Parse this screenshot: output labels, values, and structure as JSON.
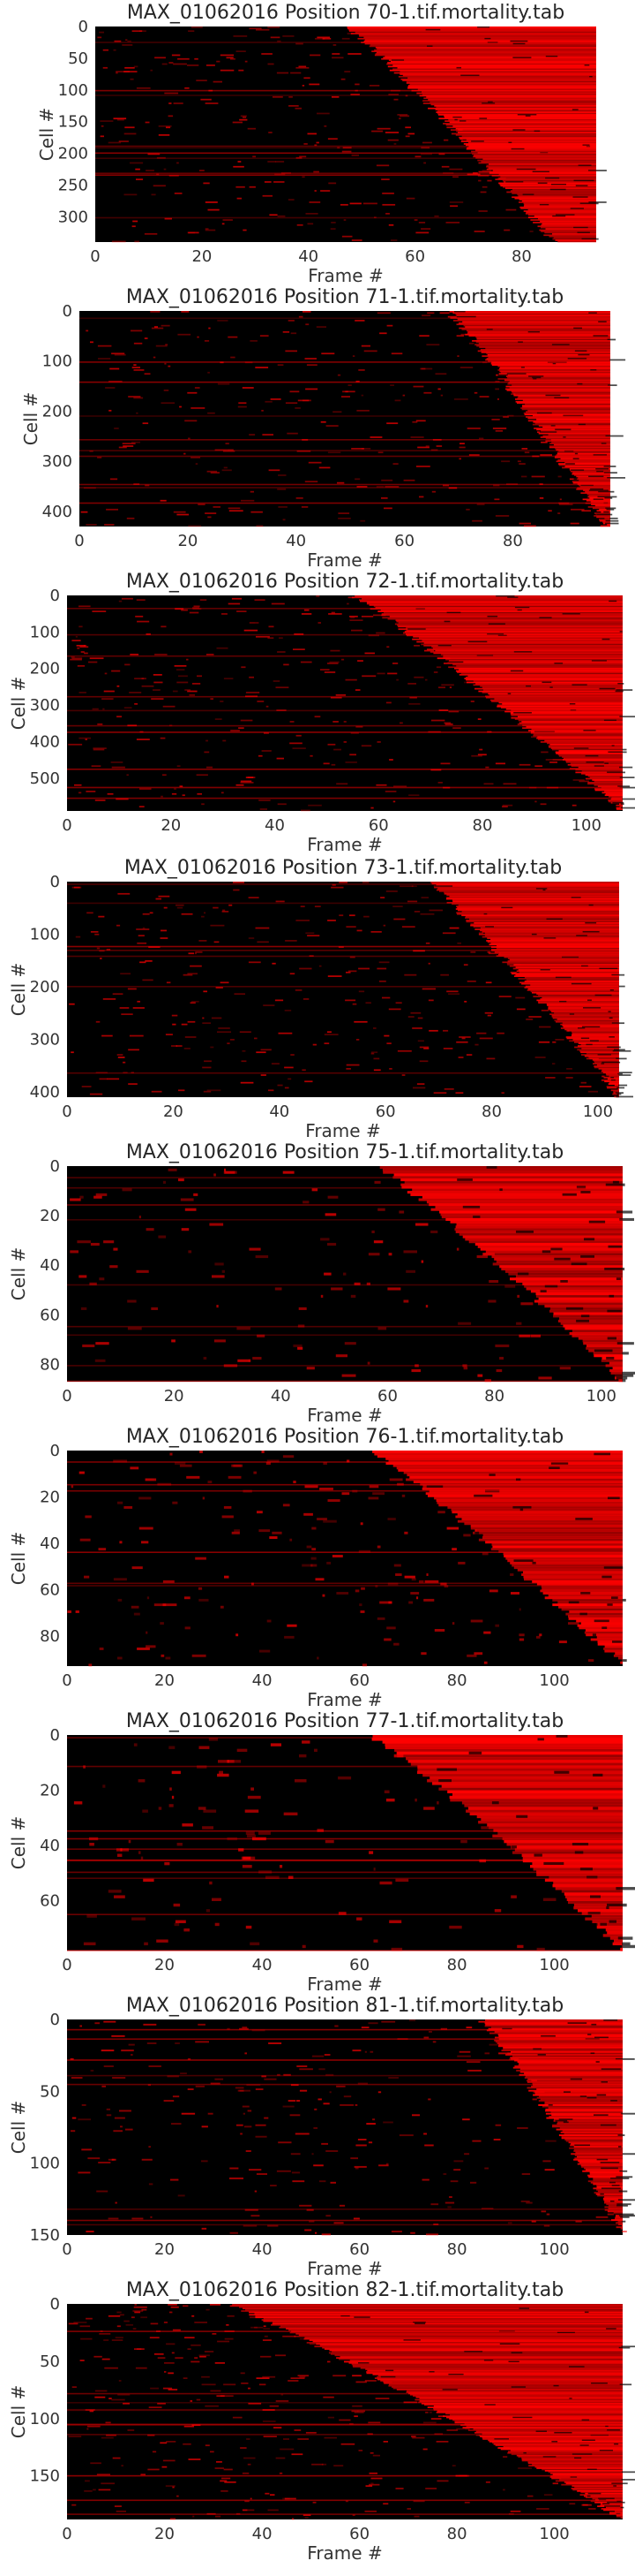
{
  "figure": {
    "background": "#ffffff",
    "cell_colormap": {
      "low": "#000000",
      "high": "#ff0000"
    }
  },
  "chart_data": [
    {
      "type": "heatmap",
      "title": "MAX_01062016 Position 70-1.tif.mortality.tab",
      "xlabel": "Frame #",
      "ylabel": "Cell #",
      "xlim": [
        0,
        94
      ],
      "ylim": [
        0,
        340
      ],
      "xticks": [
        0,
        20,
        40,
        60,
        80
      ],
      "yticks": [
        0,
        50,
        100,
        150,
        200,
        250,
        300
      ],
      "death_frame_range": [
        47,
        86
      ],
      "n_cells": 340,
      "n_frames": 94
    },
    {
      "type": "heatmap",
      "title": "MAX_01062016 Position 71-1.tif.mortality.tab",
      "xlabel": "Frame #",
      "ylabel": "Cell #",
      "xlim": [
        0,
        98
      ],
      "ylim": [
        0,
        430
      ],
      "xticks": [
        0,
        20,
        40,
        60,
        80
      ],
      "yticks": [
        0,
        100,
        200,
        300,
        400
      ],
      "death_frame_range": [
        68,
        97
      ],
      "n_cells": 430,
      "n_frames": 98
    },
    {
      "type": "heatmap",
      "title": "MAX_01062016 Position 72-1.tif.mortality.tab",
      "xlabel": "Frame #",
      "ylabel": "Cell #",
      "xlim": [
        0,
        107
      ],
      "ylim": [
        0,
        590
      ],
      "xticks": [
        0,
        20,
        40,
        60,
        80,
        100
      ],
      "yticks": [
        0,
        100,
        200,
        300,
        400,
        500
      ],
      "death_frame_range": [
        55,
        107
      ],
      "n_cells": 590,
      "n_frames": 107
    },
    {
      "type": "heatmap",
      "title": "MAX_01062016 Position 73-1.tif.mortality.tab",
      "xlabel": "Frame #",
      "ylabel": "Cell #",
      "xlim": [
        0,
        104
      ],
      "ylim": [
        0,
        410
      ],
      "xticks": [
        0,
        20,
        40,
        60,
        80,
        100
      ],
      "yticks": [
        0,
        100,
        200,
        300,
        400
      ],
      "death_frame_range": [
        68,
        104
      ],
      "n_cells": 410,
      "n_frames": 104
    },
    {
      "type": "heatmap",
      "title": "MAX_01062016 Position 75-1.tif.mortality.tab",
      "xlabel": "Frame #",
      "ylabel": "Cell #",
      "xlim": [
        0,
        104
      ],
      "ylim": [
        0,
        87
      ],
      "xticks": [
        0,
        20,
        40,
        60,
        80,
        100
      ],
      "yticks": [
        0,
        20,
        40,
        60,
        80
      ],
      "death_frame_range": [
        58,
        104
      ],
      "n_cells": 87,
      "n_frames": 104
    },
    {
      "type": "heatmap",
      "title": "MAX_01062016 Position 76-1.tif.mortality.tab",
      "xlabel": "Frame #",
      "ylabel": "Cell #",
      "xlim": [
        0,
        114
      ],
      "ylim": [
        0,
        93
      ],
      "xticks": [
        0,
        20,
        40,
        60,
        80,
        100
      ],
      "yticks": [
        0,
        20,
        40,
        60,
        80
      ],
      "death_frame_range": [
        62,
        114
      ],
      "n_cells": 93,
      "n_frames": 114
    },
    {
      "type": "heatmap",
      "title": "MAX_01062016 Position 77-1.tif.mortality.tab",
      "xlabel": "Frame #",
      "ylabel": "Cell #",
      "xlim": [
        0,
        114
      ],
      "ylim": [
        0,
        78
      ],
      "xticks": [
        0,
        20,
        40,
        60,
        80,
        100
      ],
      "yticks": [
        0,
        20,
        40,
        60
      ],
      "death_frame_range": [
        62,
        114
      ],
      "n_cells": 78,
      "n_frames": 114
    },
    {
      "type": "heatmap",
      "title": "MAX_01062016 Position 81-1.tif.mortality.tab",
      "xlabel": "Frame #",
      "ylabel": "Cell #",
      "xlim": [
        0,
        114
      ],
      "ylim": [
        0,
        150
      ],
      "xticks": [
        0,
        20,
        40,
        60,
        80,
        100
      ],
      "yticks": [
        0,
        50,
        100,
        150
      ],
      "death_frame_range": [
        85,
        114
      ],
      "n_cells": 150,
      "n_frames": 114
    },
    {
      "type": "heatmap",
      "title": "MAX_01062016 Position 82-1.tif.mortality.tab",
      "xlabel": "Frame #",
      "ylabel": "Cell #",
      "xlim": [
        0,
        114
      ],
      "ylim": [
        0,
        188
      ],
      "xticks": [
        0,
        20,
        40,
        60,
        80,
        100
      ],
      "yticks": [
        0,
        50,
        100,
        150
      ],
      "death_frame_range": [
        33,
        114
      ],
      "n_cells": 188,
      "n_frames": 114
    }
  ]
}
